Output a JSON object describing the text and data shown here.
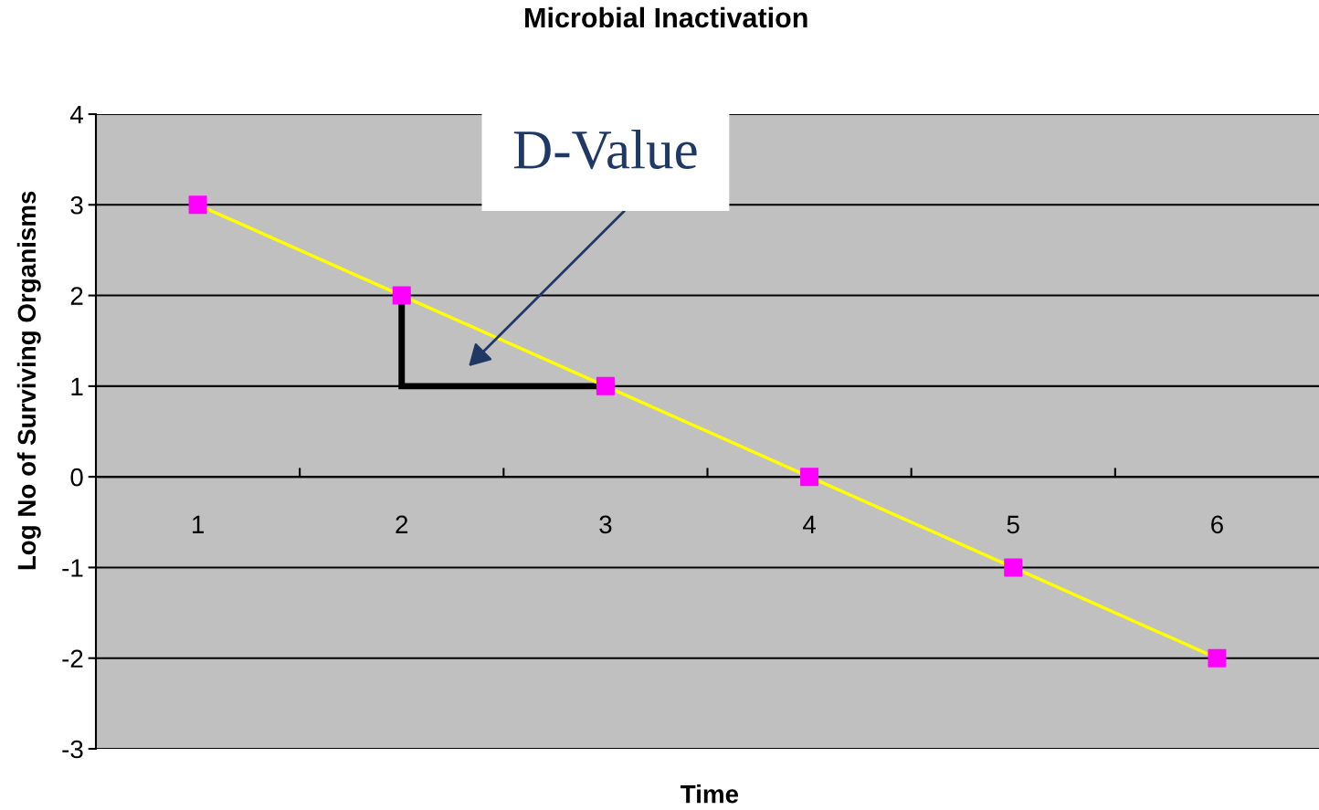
{
  "chart_data": {
    "type": "line",
    "title": "Microbial Inactivation",
    "xlabel": "Time",
    "ylabel": "Log No of Surviving Organisms",
    "categories": [
      "1",
      "2",
      "3",
      "4",
      "5",
      "6"
    ],
    "series": [
      {
        "color": "#ffff00",
        "colors": [
          "#ff00ff",
          "#ff00ff",
          "#ff00ff",
          "#ff00ff",
          "#ff00ff",
          "#ff00ff"
        ],
        "values": [
          3,
          2,
          1,
          0,
          -1,
          -2
        ]
      }
    ],
    "marker": "square",
    "ylim": [
      -3,
      4
    ],
    "yticks": [
      -3,
      -2,
      -1,
      0,
      1,
      2,
      3,
      4
    ],
    "grid": "y",
    "legend": false,
    "annotations": [
      "D-Value"
    ]
  }
}
